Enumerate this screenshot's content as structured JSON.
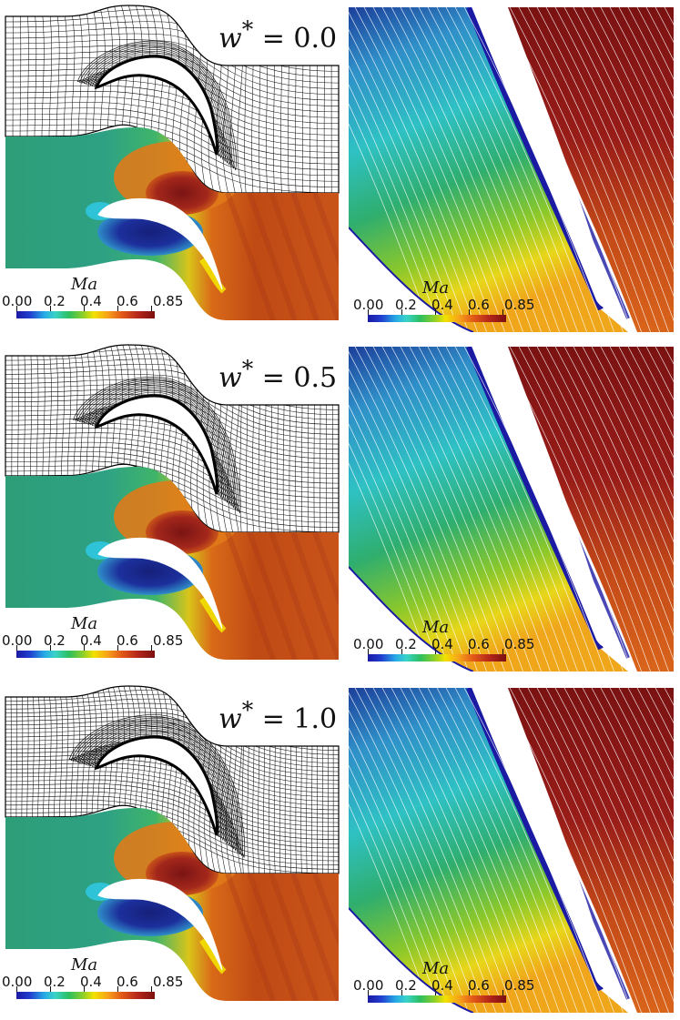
{
  "rows": [
    {
      "weight_label": "w* = 0.0",
      "weight_prefix": "w",
      "weight_value": "0.0"
    },
    {
      "weight_label": "w* = 0.5",
      "weight_prefix": "w",
      "weight_value": "0.5"
    },
    {
      "weight_label": "w* = 1.0",
      "weight_prefix": "w",
      "weight_value": "1.0"
    }
  ],
  "colorbar": {
    "title": "Ma",
    "ticks": [
      "0.00",
      "0.2",
      "0.4",
      "0.6",
      "0.85"
    ]
  },
  "colors": {
    "low": "#1b1aa3",
    "mid_low": "#3ad3c8",
    "mid": "#2f9f6a",
    "mid_high": "#f2e100",
    "high": "#b4261a",
    "mesh": "#111111"
  }
}
